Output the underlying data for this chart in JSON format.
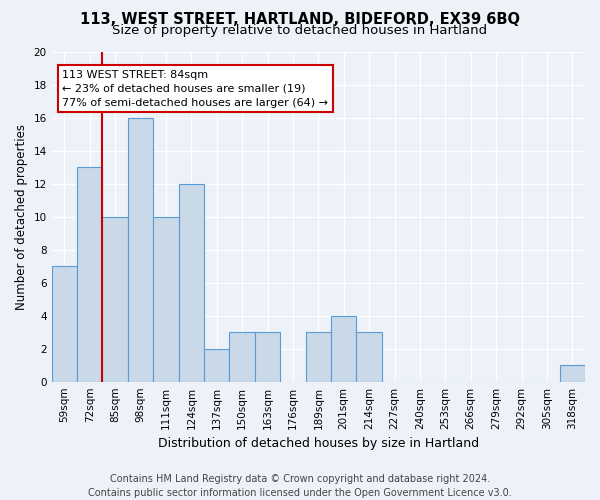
{
  "title1": "113, WEST STREET, HARTLAND, BIDEFORD, EX39 6BQ",
  "title2": "Size of property relative to detached houses in Hartland",
  "xlabel": "Distribution of detached houses by size in Hartland",
  "ylabel": "Number of detached properties",
  "categories": [
    "59sqm",
    "72sqm",
    "85sqm",
    "98sqm",
    "111sqm",
    "124sqm",
    "137sqm",
    "150sqm",
    "163sqm",
    "176sqm",
    "189sqm",
    "201sqm",
    "214sqm",
    "227sqm",
    "240sqm",
    "253sqm",
    "266sqm",
    "279sqm",
    "292sqm",
    "305sqm",
    "318sqm"
  ],
  "values": [
    7,
    13,
    10,
    16,
    10,
    12,
    2,
    3,
    3,
    0,
    3,
    4,
    3,
    0,
    0,
    0,
    0,
    0,
    0,
    0,
    1
  ],
  "bar_color": "#c9d9e8",
  "bar_edge_color": "#5b9bd5",
  "vline_x": 1.5,
  "annotation_line1": "113 WEST STREET: 84sqm",
  "annotation_line2": "← 23% of detached houses are smaller (19)",
  "annotation_line3": "77% of semi-detached houses are larger (64) →",
  "annotation_box_color": "#ffffff",
  "annotation_box_edge_color": "#cc0000",
  "vline_color": "#cc0000",
  "footer": "Contains HM Land Registry data © Crown copyright and database right 2024.\nContains public sector information licensed under the Open Government Licence v3.0.",
  "ylim": [
    0,
    20
  ],
  "yticks": [
    0,
    2,
    4,
    6,
    8,
    10,
    12,
    14,
    16,
    18,
    20
  ],
  "background_color": "#edf2f9",
  "plot_bg_color": "#edf2f9",
  "grid_color": "#ffffff",
  "title1_fontsize": 10.5,
  "title2_fontsize": 9.5,
  "xlabel_fontsize": 9,
  "ylabel_fontsize": 8.5,
  "tick_fontsize": 7.5,
  "footer_fontsize": 7,
  "annot_fontsize": 8
}
